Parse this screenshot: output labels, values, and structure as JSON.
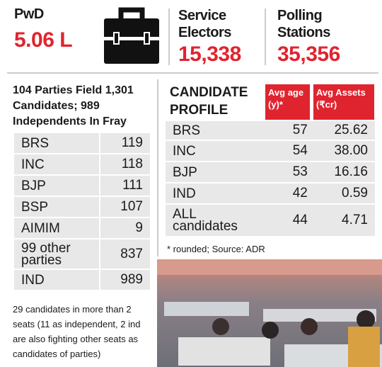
{
  "header": {
    "stats": [
      {
        "label": "PwD",
        "value": "5.06 L"
      },
      {
        "label": "Service Electors",
        "value": "15,338"
      },
      {
        "label": "Polling Stations",
        "value": "35,356"
      }
    ]
  },
  "parties": {
    "title": "104 Parties Field 1,301 Candidates; 989 Independents In Fray",
    "rows": [
      [
        "BRS",
        "119"
      ],
      [
        "INC",
        "118"
      ],
      [
        "BJP",
        "111"
      ],
      [
        "BSP",
        "107"
      ],
      [
        "AIMIM",
        "9"
      ],
      [
        "99 other parties",
        "837"
      ],
      [
        "IND",
        "989"
      ]
    ],
    "note": "29 candidates in more than 2 seats (11 as independent, 2 ind are also fighting other seats as candidates of parties)"
  },
  "profile": {
    "title": "CANDIDATE PROFILE",
    "columns": [
      "Avg age (y)*",
      "Avg Assets (₹cr)"
    ],
    "rows": [
      [
        "BRS",
        "57",
        "25.62"
      ],
      [
        "INC",
        "54",
        "38.00"
      ],
      [
        "BJP",
        "53",
        "16.16"
      ],
      [
        "IND",
        "42",
        "0.59"
      ],
      [
        "ALL candidates",
        "44",
        "4.71"
      ]
    ],
    "footnote": "* rounded; Source: ADR"
  }
}
